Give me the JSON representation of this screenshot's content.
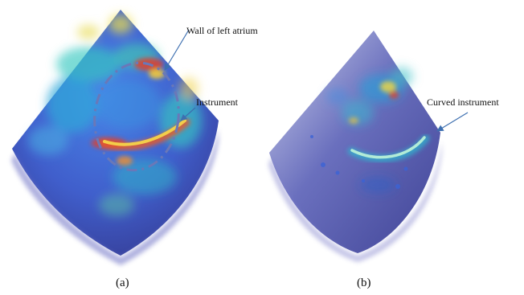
{
  "panels": [
    {
      "caption": "(a)",
      "annotations": [
        "Wall of left atrium",
        "Instrument"
      ]
    },
    {
      "caption": "(b)",
      "annotations": [
        "Curved instrument"
      ]
    }
  ],
  "colors": {
    "arrow": "#3d6fb0",
    "outline": "#6a78b8",
    "deep": "#2b2f8e",
    "mid": "#3b63d6",
    "hot": "#e0402a",
    "warm": "#f2c93a",
    "teal": "#37c8c0"
  }
}
